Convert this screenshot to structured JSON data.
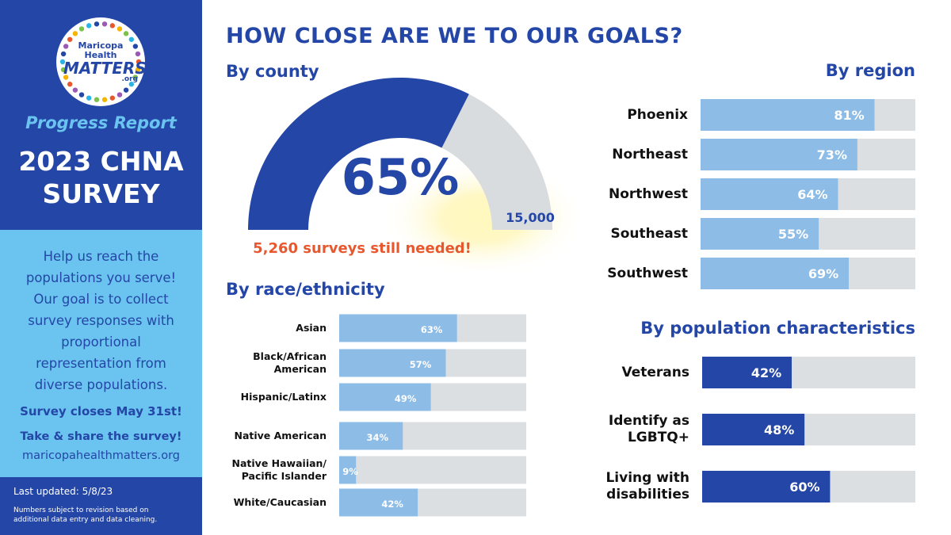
{
  "sidebar": {
    "logo": {
      "line1": "Maricopa Health",
      "line2": "MATTERS",
      "line3": ".org"
    },
    "subtitle": "Progress Report",
    "title": "2023 CHNA SURVEY",
    "body": "Help us reach the populations you serve! Our goal is to collect survey responses with proportional representation from diverse populations.",
    "deadline": "Survey closes May 31st!",
    "call_to_action": "Take & share the survey!",
    "website": "maricopahealthmatters.org",
    "last_updated": "Last updated: 5/8/23",
    "note": "Numbers subject to revision based on additional data entry and data cleaning."
  },
  "header": {
    "title": "HOW CLOSE ARE WE TO OUR GOALS?"
  },
  "chart_data": [
    {
      "type": "gauge",
      "title": "By county",
      "values": [
        9740
      ],
      "value_labels": [
        "65%"
      ],
      "ylim": [
        0,
        15000
      ],
      "yticks": [
        0,
        {
          "value": 15000,
          "label": "15,000"
        }
      ],
      "color": "#2446a6",
      "track_color": "#d9dcdf",
      "annotation": "5,260 surveys still needed!"
    },
    {
      "type": "hbar",
      "title": "By region",
      "categories": [
        "Phoenix",
        "Northeast",
        "Northwest",
        "Southeast",
        "Southwest"
      ],
      "values": [
        81,
        73,
        64,
        55,
        69
      ],
      "value_labels": [
        "81%",
        "73%",
        "64%",
        "55%",
        "69%"
      ],
      "xlim": [
        0,
        100
      ],
      "color": "#8dbde6",
      "track_color": "#dcdfe2"
    },
    {
      "type": "hbar",
      "title": "By race/ethnicity",
      "categories": [
        "Asian",
        "Black/African American",
        "Hispanic/Latinx",
        "Native American",
        "Native Hawaiian/ Pacific Islander",
        "White/Caucasian"
      ],
      "values": [
        63,
        57,
        49,
        34,
        9,
        42
      ],
      "value_labels": [
        "63%",
        "57%",
        "49%",
        "34%",
        "9%",
        "42%"
      ],
      "xlim": [
        0,
        100
      ],
      "color": "#8dbde6",
      "track_color": "#dcdfe2"
    },
    {
      "type": "hbar",
      "title": "By population characteristics",
      "categories": [
        "Veterans",
        "Identify as LGBTQ+",
        "Living with disabilities"
      ],
      "values": [
        42,
        48,
        60
      ],
      "value_labels": [
        "42%",
        "48%",
        "60%"
      ],
      "xlim": [
        0,
        100
      ],
      "color": "#2446a6",
      "track_color": "#dcdfe2"
    }
  ]
}
